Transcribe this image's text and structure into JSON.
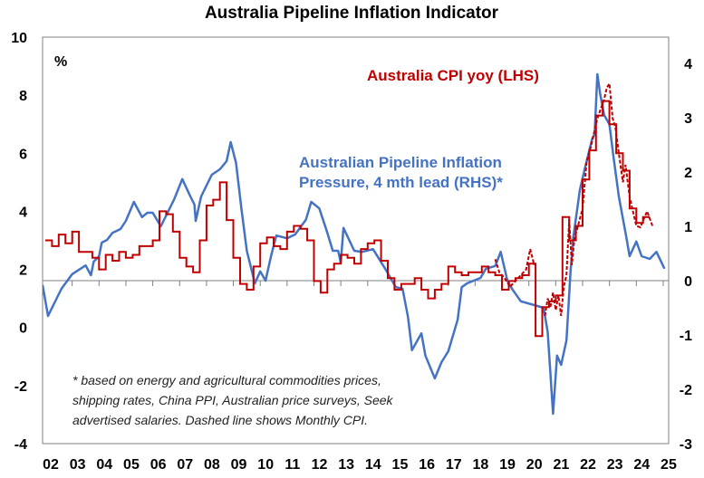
{
  "chart_data": {
    "type": "line",
    "title": "Australia Pipeline Inflation Indicator",
    "ylabel_left": "%",
    "ylim_left": [
      -4,
      10
    ],
    "ylim_right": [
      -3,
      4.48
    ],
    "xlim": [
      2001.9,
      2025.2
    ],
    "yticks_left": [
      "10",
      "8",
      "6",
      "4",
      "2",
      "0",
      "-2",
      "-4"
    ],
    "yticks_left_values": [
      10,
      8,
      6,
      4,
      2,
      0,
      -2,
      -4
    ],
    "yticks_right": [
      "4",
      "3",
      "2",
      "1",
      "0",
      "-1",
      "-2",
      "-3"
    ],
    "yticks_right_values": [
      4,
      3,
      2,
      1,
      0,
      -1,
      -2,
      -3
    ],
    "xticks": [
      "02",
      "03",
      "04",
      "05",
      "06",
      "07",
      "08",
      "09",
      "10",
      "11",
      "12",
      "13",
      "14",
      "15",
      "16",
      "17",
      "18",
      "19",
      "20",
      "21",
      "22",
      "23",
      "24",
      "25"
    ],
    "xtick_years": [
      2002,
      2003,
      2004,
      2005,
      2006,
      2007,
      2008,
      2009,
      2010,
      2011,
      2012,
      2013,
      2014,
      2015,
      2016,
      2017,
      2018,
      2019,
      2020,
      2021,
      2022,
      2023,
      2024,
      2025
    ],
    "colors": {
      "cpi": "#c00000",
      "pipeline": "#4472c4",
      "axis": "#808080"
    },
    "series": [
      {
        "name": "Australia CPI yoy (LHS)",
        "axis": "left",
        "style": "step",
        "start": 2002.0,
        "step": 0.25,
        "values": [
          3.0,
          2.8,
          3.2,
          2.9,
          3.3,
          2.6,
          2.6,
          2.4,
          2.0,
          2.5,
          2.3,
          2.6,
          2.4,
          2.5,
          2.8,
          2.8,
          3.0,
          4.0,
          3.9,
          3.3,
          2.4,
          2.1,
          1.9,
          3.0,
          4.2,
          4.4,
          5.0,
          3.7,
          2.4,
          1.5,
          1.3,
          2.1,
          2.9,
          3.1,
          2.8,
          2.7,
          3.3,
          3.5,
          3.4,
          3.0,
          1.6,
          1.2,
          2.0,
          2.2,
          2.5,
          2.4,
          2.2,
          2.7,
          2.9,
          3.0,
          2.3,
          1.7,
          1.3,
          1.5,
          1.5,
          1.7,
          1.3,
          1.0,
          1.3,
          1.5,
          2.1,
          1.9,
          1.8,
          1.9,
          1.9,
          2.1,
          1.9,
          1.8,
          1.3,
          1.6,
          1.7,
          1.8,
          2.2,
          -0.3,
          0.7,
          0.9,
          1.1,
          3.8,
          3.0,
          3.5,
          5.1,
          6.1,
          7.3,
          7.8,
          7.0,
          6.0,
          5.4,
          4.1,
          3.6,
          3.8
        ]
      },
      {
        "name": "Monthly CPI (LHS, dashed)",
        "axis": "left",
        "style": "dashed",
        "segments": [
          {
            "x": [
              2018.75,
              2018.9,
              2019.1,
              2019.3,
              2019.5,
              2019.7,
              2019.9,
              2020.05,
              2020.2
            ],
            "y": [
              2.35,
              1.9,
              1.7,
              1.4,
              1.6,
              1.8,
              2.0,
              2.7,
              2.15
            ]
          },
          {
            "x": [
              2020.6,
              2020.7,
              2020.8,
              2020.9,
              2021.0,
              2021.1,
              2021.2,
              2021.3,
              2021.4,
              2021.5,
              2021.6,
              2021.7,
              2021.8,
              2022.0,
              2022.15,
              2022.3,
              2022.55,
              2022.8,
              2022.9,
              2023.0,
              2023.12,
              2023.22,
              2023.35,
              2023.5,
              2023.6,
              2023.75,
              2024.0,
              2024.15,
              2024.4,
              2024.6
            ],
            "y": [
              0.4,
              1.0,
              0.7,
              1.2,
              0.6,
              1.1,
              0.4,
              1.4,
              1.8,
              3.7,
              2.15,
              3.1,
              3.4,
              4.1,
              5.7,
              6.2,
              7.2,
              7.85,
              8.25,
              8.4,
              7.2,
              6.9,
              6.0,
              5.0,
              5.6,
              4.5,
              3.5,
              3.45,
              4.0,
              3.5
            ]
          }
        ]
      },
      {
        "name": "Australian Pipeline Inflation Pressure, 4 mth lead (RHS)*",
        "axis": "right",
        "style": "line",
        "x": [
          2001.9,
          2002.1,
          2002.3,
          2002.6,
          2003.0,
          2003.5,
          2003.7,
          2003.8,
          2004.0,
          2004.1,
          2004.3,
          2004.5,
          2004.8,
          2005.0,
          2005.3,
          2005.6,
          2005.8,
          2006.0,
          2006.3,
          2006.6,
          2006.8,
          2007.1,
          2007.4,
          2007.55,
          2007.6,
          2007.8,
          2008.2,
          2008.5,
          2008.75,
          2008.9,
          2009.1,
          2009.3,
          2009.5,
          2009.8,
          2010.0,
          2010.2,
          2010.4,
          2010.6,
          2011.0,
          2011.3,
          2011.7,
          2011.9,
          2012.2,
          2012.5,
          2012.7,
          2012.9,
          2013.0,
          2013.1,
          2013.5,
          2013.8,
          2014.2,
          2014.65,
          2015.05,
          2015.3,
          2015.5,
          2015.65,
          2016.0,
          2016.15,
          2016.5,
          2016.75,
          2017.0,
          2017.35,
          2017.5,
          2017.7,
          2018.2,
          2018.4,
          2018.75,
          2018.95,
          2019.2,
          2019.4,
          2019.7,
          2020.2,
          2020.55,
          2020.7,
          2020.9,
          2021.05,
          2021.2,
          2021.4,
          2021.55,
          2021.65,
          2021.9,
          2022.1,
          2022.35,
          2022.45,
          2022.55,
          2022.65,
          2022.8,
          2023.0,
          2023.15,
          2023.35,
          2023.6,
          2023.75,
          2024.0,
          2024.2,
          2024.5,
          2024.75,
          2025.05
        ],
        "y": [
          -0.08,
          -0.65,
          -0.45,
          -0.15,
          0.12,
          0.28,
          0.1,
          0.35,
          0.45,
          0.7,
          0.75,
          0.88,
          0.95,
          1.1,
          1.45,
          1.17,
          1.25,
          1.25,
          1.0,
          1.3,
          1.5,
          1.87,
          1.55,
          1.4,
          1.1,
          1.55,
          1.95,
          2.05,
          2.2,
          2.55,
          2.17,
          1.33,
          0.55,
          -0.05,
          0.17,
          0.0,
          0.45,
          0.83,
          0.78,
          0.85,
          1.12,
          1.45,
          1.33,
          0.88,
          0.55,
          0.55,
          0.33,
          0.97,
          0.55,
          0.53,
          0.58,
          0.22,
          -0.12,
          -0.15,
          -0.67,
          -1.28,
          -0.97,
          -1.38,
          -1.8,
          -1.5,
          -1.3,
          -0.72,
          -0.12,
          -0.05,
          0.05,
          0.22,
          0.27,
          0.53,
          0.0,
          -0.17,
          -0.38,
          -0.45,
          -0.5,
          -0.95,
          -2.45,
          -1.38,
          -1.55,
          -1.1,
          0.17,
          0.78,
          1.67,
          2.1,
          2.6,
          2.7,
          3.8,
          3.45,
          3.05,
          2.88,
          2.28,
          1.55,
          0.88,
          0.45,
          0.72,
          0.45,
          0.4,
          0.53,
          0.22
        ]
      }
    ],
    "annotations": {
      "cpi_label": "Australia CPI yoy (LHS)",
      "pipeline_label_line1": "Australian Pipeline Inflation",
      "pipeline_label_line2": "Pressure, 4 mth lead (RHS)*",
      "footnote_line1": "* based on energy and agricultural commodities prices,",
      "footnote_line2": "shipping rates, China PPI, Australian price surveys, Seek",
      "footnote_line3": "advertised salaries. Dashed line shows Monthly CPI."
    }
  }
}
